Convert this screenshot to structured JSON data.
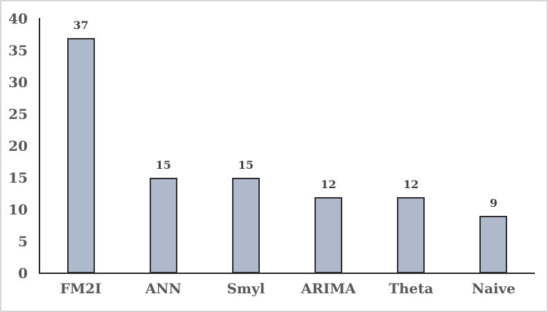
{
  "chart_data": {
    "type": "bar",
    "title": "",
    "categories": [
      "FM2I",
      "ANN",
      "Smyl",
      "ARIMA",
      "Theta",
      "Naive"
    ],
    "values": [
      37,
      15,
      15,
      12,
      12,
      9
    ],
    "data_labels": [
      "37",
      "15",
      "15",
      "12",
      "12",
      "9"
    ],
    "xlabel": "",
    "ylabel": "",
    "ylim": [
      0,
      40
    ],
    "ytick_step": 5,
    "yticks": [
      "0",
      "5",
      "10",
      "15",
      "20",
      "25",
      "30",
      "35",
      "40"
    ],
    "grid": false,
    "legend": "none",
    "colors": {
      "bar_fill": "#aebacb",
      "bar_border": "#2b2b2b",
      "axis_line": "#262626",
      "tick_label": "#595959",
      "data_label": "#404040",
      "frame_border": "#d6d6d6",
      "background": "#ffffff"
    }
  }
}
